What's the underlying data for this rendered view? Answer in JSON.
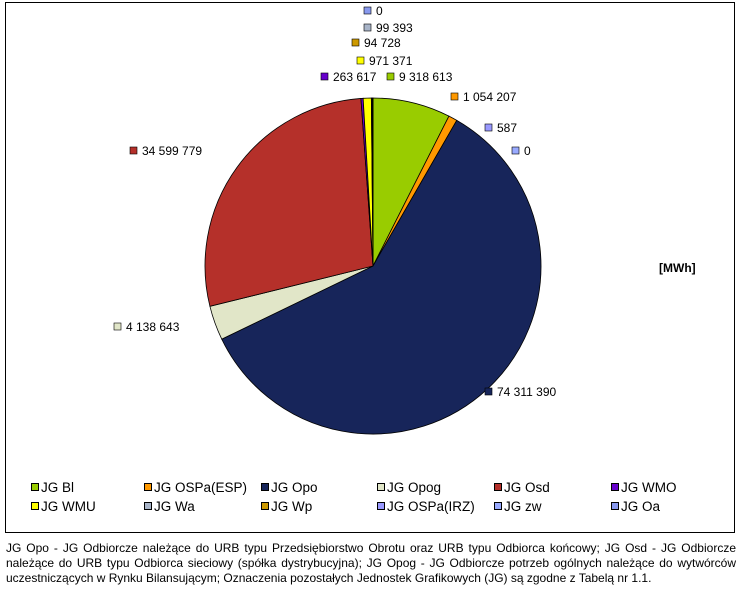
{
  "chart_data": {
    "type": "pie",
    "unit_label": "[MWh]",
    "slices": [
      {
        "name": "JG Bl",
        "value": 9318613,
        "label": "9 318 613",
        "color": "#99cc00"
      },
      {
        "name": "JG OSPa(ESP)",
        "value": 1054207,
        "label": "1 054 207",
        "color": "#ff9900"
      },
      {
        "name": "JG Opo",
        "value": 74311390,
        "label": "74 311 390",
        "color": "#17255a"
      },
      {
        "name": "JG Opog",
        "value": 4138643,
        "label": "4 138 643",
        "color": "#e1e6c8"
      },
      {
        "name": "JG Osd",
        "value": 34599779,
        "label": "34 599 779",
        "color": "#b5302a"
      },
      {
        "name": "JG WMO",
        "value": 263617,
        "label": "263 617",
        "color": "#6600cc"
      },
      {
        "name": "JG WMU",
        "value": 971371,
        "label": "971 371",
        "color": "#ffff00"
      },
      {
        "name": "JG Wa",
        "value": 99393,
        "label": "99 393",
        "color": "#a8b4c8"
      },
      {
        "name": "JG Wp",
        "value": 94728,
        "label": "94 728",
        "color": "#cc9900"
      },
      {
        "name": "JG OSPa(IRZ)",
        "value": 587,
        "label": "587",
        "color": "#9999ff"
      },
      {
        "name": "JG zw",
        "value": 0,
        "label": "0",
        "color": "#99aaff"
      },
      {
        "name": "JG Oa",
        "value": 0,
        "label": "0",
        "color": "#8899ee"
      }
    ],
    "legend_position": "bottom"
  },
  "caption": "JG Opo - JG Odbiorcze należące do URB typu Przedsiębiorstwo Obrotu oraz URB typu Odbiorca końcowy; JG Osd - JG Odbiorcze należące do URB typu Odbiorca sieciowy (spółka dystrybucyjna); JG Opog - JG Odbiorcze potrzeb ogólnych należące do wytwórców uczestniczących w Rynku Bilansującym; Oznaczenia pozostałych Jednostek Grafikowych (JG) są zgodne z Tabelą nr 1.1."
}
